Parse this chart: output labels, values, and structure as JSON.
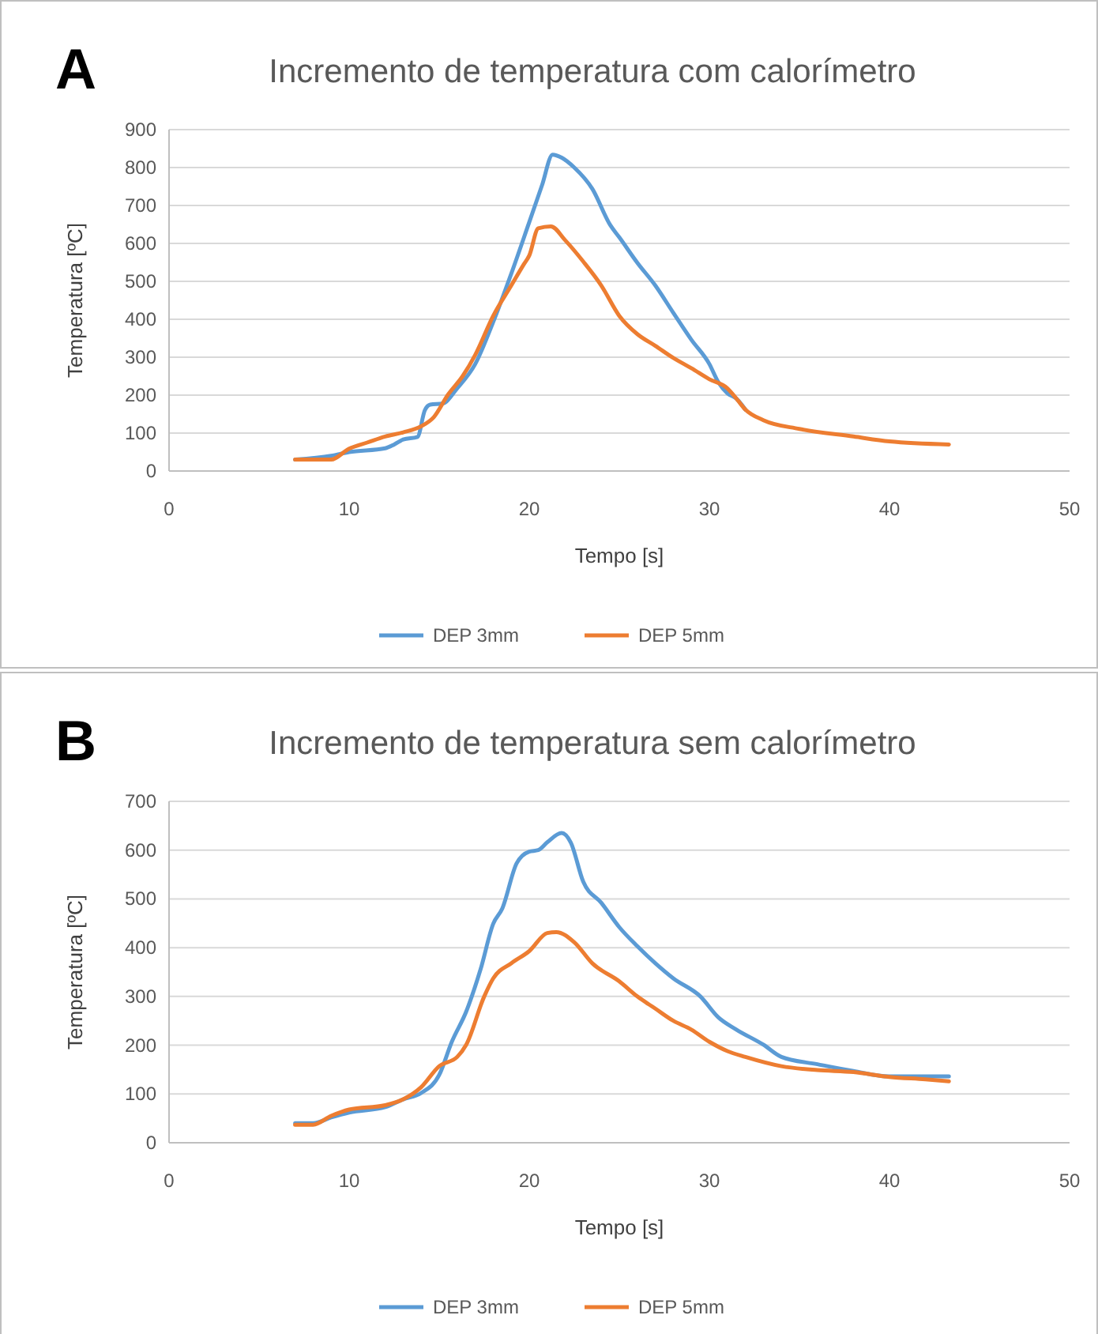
{
  "chart_data": [
    {
      "type": "line",
      "title": "Incremento de temperatura com calorímetro",
      "xlabel": "Tempo  [s]",
      "ylabel": "Temperatura  [ºC]",
      "annotations": [
        "A"
      ],
      "xlim": [
        0,
        50
      ],
      "xticks": [
        0,
        10,
        20,
        30,
        40,
        50
      ],
      "ylim": [
        0,
        900
      ],
      "yticks": [
        0,
        100,
        200,
        300,
        400,
        500,
        600,
        700,
        800,
        900
      ],
      "grid": "y",
      "legend": "bottom",
      "marker": "none",
      "line_style": "solid",
      "series": [
        {
          "name": "DEP 3mm",
          "color": "#5b9bd5",
          "x": [
            7,
            9,
            10,
            12,
            12.5,
            13,
            13.8,
            14.2,
            14.5,
            15.2,
            16,
            17,
            18,
            19,
            20,
            20.7,
            21.3,
            21.8,
            22.5,
            23.5,
            24.5,
            25,
            26,
            27,
            28,
            29,
            30,
            30.5,
            31,
            31.5,
            32
          ],
          "values": [
            30,
            40,
            50,
            60,
            70,
            83,
            90,
            160,
            175,
            178,
            218,
            282,
            393,
            520,
            656,
            752,
            834,
            826,
            800,
            744,
            648,
            616,
            549,
            489,
            417,
            346,
            282,
            234,
            205,
            191,
            162
          ]
        },
        {
          "name": "DEP 5mm",
          "color": "#ed7d31",
          "x": [
            7,
            9,
            10,
            11,
            12,
            13,
            14,
            14.7,
            15.5,
            16.3,
            17,
            18,
            19,
            19.7,
            20,
            20.5,
            21.2,
            22,
            23,
            24,
            25,
            26,
            27,
            28,
            29,
            30,
            31,
            31.5,
            32,
            33,
            35,
            38,
            40,
            43.3
          ],
          "values": [
            30,
            30,
            59,
            75,
            91,
            102,
            118,
            142,
            202,
            250,
            306,
            409,
            489,
            545,
            568,
            640,
            645,
            608,
            552,
            489,
            409,
            361,
            330,
            298,
            271,
            242,
            218,
            191,
            162,
            134,
            111,
            91,
            78,
            70
          ]
        }
      ]
    },
    {
      "type": "line",
      "title": "Incremento de temperatura sem calorímetro",
      "xlabel": "Tempo  [s]",
      "ylabel": "Temperatura  [ºC]",
      "annotations": [
        "B"
      ],
      "xlim": [
        0,
        50
      ],
      "xticks": [
        0,
        10,
        20,
        30,
        40,
        50
      ],
      "ylim": [
        0,
        700
      ],
      "yticks": [
        0,
        100,
        200,
        300,
        400,
        500,
        600,
        700
      ],
      "grid": "y",
      "legend": "bottom",
      "marker": "none",
      "line_style": "solid",
      "series": [
        {
          "name": "DEP 3mm",
          "color": "#5b9bd5",
          "x": [
            7,
            8,
            9,
            10,
            12,
            13,
            14,
            15,
            15.7,
            16.5,
            17.3,
            18,
            18.5,
            19.3,
            20,
            20.5,
            21,
            21.8,
            22.3,
            23,
            24,
            25,
            26,
            27,
            28,
            29.5,
            30.5,
            31.5,
            33,
            34,
            36,
            38,
            40,
            41.5,
            43.3
          ],
          "values": [
            40,
            40,
            52,
            62,
            73,
            89,
            102,
            139,
            207,
            269,
            356,
            449,
            480,
            573,
            597,
            600,
            616,
            635,
            616,
            535,
            492,
            442,
            403,
            368,
            337,
            300,
            257,
            232,
            201,
            176,
            161,
            147,
            136,
            136,
            136
          ]
        },
        {
          "name": "DEP 5mm",
          "color": "#ed7d31",
          "x": [
            7,
            8,
            9,
            10,
            12,
            13,
            14,
            15,
            16,
            16.5,
            17.5,
            18,
            19,
            20,
            21,
            21.5,
            22.5,
            23.5,
            25,
            26,
            27,
            28,
            29,
            30,
            31,
            32,
            34,
            36,
            38,
            40,
            42,
            43.3
          ],
          "values": [
            37,
            37,
            55,
            68,
            77,
            89,
            114,
            157,
            176,
            201,
            300,
            337,
            368,
            393,
            430,
            432,
            411,
            368,
            331,
            300,
            275,
            250,
            232,
            207,
            188,
            176,
            157,
            149,
            145,
            135,
            130,
            126
          ]
        }
      ]
    }
  ]
}
